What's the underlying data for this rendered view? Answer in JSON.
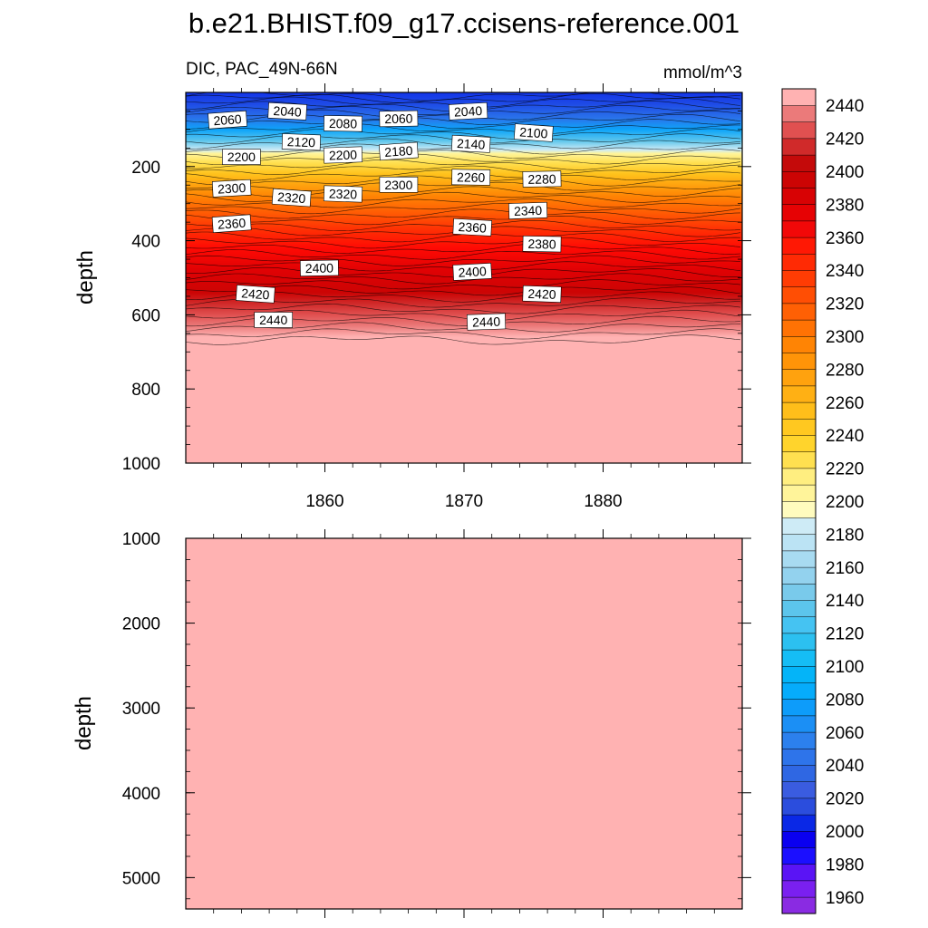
{
  "chart_data": {
    "type": "heatmap",
    "title": "b.e21.BHIST.f09_g17.ccisens-reference.001",
    "subtitle_left": "DIC, PAC_49N-66N",
    "subtitle_right": "mmol/m^3",
    "panels": [
      {
        "name": "upper",
        "ylabel": "depth",
        "ylim": [
          0,
          1000
        ],
        "yticks": [
          "200",
          "400",
          "600",
          "800",
          "1000"
        ],
        "xlim": [
          1850,
          1890
        ],
        "xticks": [
          "1860",
          "1870",
          "1880"
        ],
        "contour_labels": [
          {
            "text": "2060",
            "year": 1853.0,
            "depth": 75
          },
          {
            "text": "2040",
            "year": 1857.3,
            "depth": 52
          },
          {
            "text": "2080",
            "year": 1861.3,
            "depth": 85
          },
          {
            "text": "2060",
            "year": 1865.3,
            "depth": 72
          },
          {
            "text": "2040",
            "year": 1870.3,
            "depth": 52
          },
          {
            "text": "2100",
            "year": 1875.0,
            "depth": 110
          },
          {
            "text": "2120",
            "year": 1858.3,
            "depth": 135
          },
          {
            "text": "2200",
            "year": 1854.0,
            "depth": 175
          },
          {
            "text": "2200",
            "year": 1861.3,
            "depth": 170
          },
          {
            "text": "2180",
            "year": 1865.3,
            "depth": 160
          },
          {
            "text": "2140",
            "year": 1870.5,
            "depth": 140
          },
          {
            "text": "2260",
            "year": 1870.5,
            "depth": 230
          },
          {
            "text": "2280",
            "year": 1875.6,
            "depth": 235
          },
          {
            "text": "2300",
            "year": 1853.3,
            "depth": 260
          },
          {
            "text": "2320",
            "year": 1857.6,
            "depth": 285
          },
          {
            "text": "2320",
            "year": 1861.3,
            "depth": 275
          },
          {
            "text": "2300",
            "year": 1865.3,
            "depth": 250
          },
          {
            "text": "2340",
            "year": 1874.6,
            "depth": 320
          },
          {
            "text": "2360",
            "year": 1853.3,
            "depth": 355
          },
          {
            "text": "2360",
            "year": 1870.6,
            "depth": 365
          },
          {
            "text": "2380",
            "year": 1875.6,
            "depth": 410
          },
          {
            "text": "2400",
            "year": 1859.6,
            "depth": 475
          },
          {
            "text": "2400",
            "year": 1870.6,
            "depth": 485
          },
          {
            "text": "2420",
            "year": 1855.0,
            "depth": 545
          },
          {
            "text": "2420",
            "year": 1875.6,
            "depth": 545
          },
          {
            "text": "2440",
            "year": 1856.3,
            "depth": 615
          },
          {
            "text": "2440",
            "year": 1871.6,
            "depth": 620
          }
        ]
      },
      {
        "name": "lower",
        "ylabel": "depth",
        "ylim": [
          1000,
          5370
        ],
        "yticks": [
          "1000",
          "2000",
          "3000",
          "4000",
          "5000"
        ],
        "xlim": [
          1850,
          1890
        ],
        "xticks": [],
        "fill_value": "2440+"
      }
    ],
    "colorbar": {
      "levels": [
        "1960",
        "1980",
        "2000",
        "2020",
        "2040",
        "2060",
        "2080",
        "2100",
        "2120",
        "2140",
        "2160",
        "2180",
        "2200",
        "2220",
        "2240",
        "2260",
        "2280",
        "2300",
        "2320",
        "2340",
        "2360",
        "2380",
        "2400",
        "2420",
        "2440"
      ],
      "min_level": 1950,
      "max_level": 2450,
      "step": 10,
      "colors": [
        "#8A2BE2",
        "#7A20F0",
        "#5A14F5",
        "#1B0FFF",
        "#0A00F0",
        "#0A28E6",
        "#2B4DDD",
        "#3A5CE0",
        "#2F67E3",
        "#2E74EA",
        "#2C80ED",
        "#1B8FF5",
        "#0D9CFA",
        "#06ACFB",
        "#04B4F8",
        "#15BDF5",
        "#2CC0F0",
        "#45C3F2",
        "#5CC5EC",
        "#79CAEB",
        "#93D2EE",
        "#A8DBF1",
        "#BBE3F4",
        "#CEEBF6",
        "#FFFBBE",
        "#FFF49A",
        "#FFEE80",
        "#FFE050",
        "#FFD42C",
        "#FFC820",
        "#FFBE1A",
        "#FFB014",
        "#FFA20E",
        "#FF9408",
        "#FF8404",
        "#FF7204",
        "#FF6004",
        "#FF4E04",
        "#FF3C04",
        "#FF2A04",
        "#FF1804",
        "#F20808",
        "#E60204",
        "#D80204",
        "#CC0404",
        "#C40A0A",
        "#D02A2A",
        "#E05050",
        "#EB7A7A",
        "#FFB2B2"
      ]
    }
  }
}
